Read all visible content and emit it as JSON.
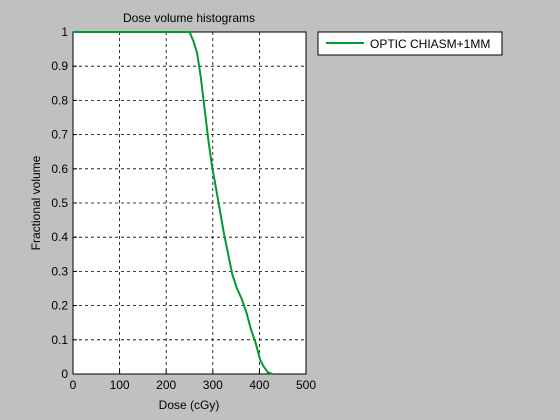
{
  "chart_data": {
    "type": "line",
    "title": "Dose volume histograms",
    "xlabel": "Dose (cGy)",
    "ylabel": "Fractional volume",
    "xlim": [
      0,
      500
    ],
    "ylim": [
      0,
      1
    ],
    "xticks": [
      0,
      100,
      200,
      300,
      400,
      500
    ],
    "yticks": [
      0,
      0.1,
      0.2,
      0.3,
      0.4,
      0.5,
      0.6,
      0.7,
      0.8,
      0.9,
      1
    ],
    "grid": true,
    "legend_position": "outside-top-right",
    "series": [
      {
        "name": "OPTIC CHIASM+1MM",
        "color": "#009933",
        "x": [
          0,
          250,
          258,
          266,
          274,
          282,
          290,
          298,
          306,
          315,
          324,
          333,
          342,
          352,
          362,
          372,
          382,
          392,
          402,
          410,
          418,
          428
        ],
        "y": [
          1,
          1,
          0.975,
          0.94,
          0.87,
          0.78,
          0.69,
          0.61,
          0.55,
          0.48,
          0.41,
          0.35,
          0.29,
          0.25,
          0.22,
          0.18,
          0.13,
          0.09,
          0.04,
          0.02,
          0.005,
          0
        ]
      }
    ]
  }
}
